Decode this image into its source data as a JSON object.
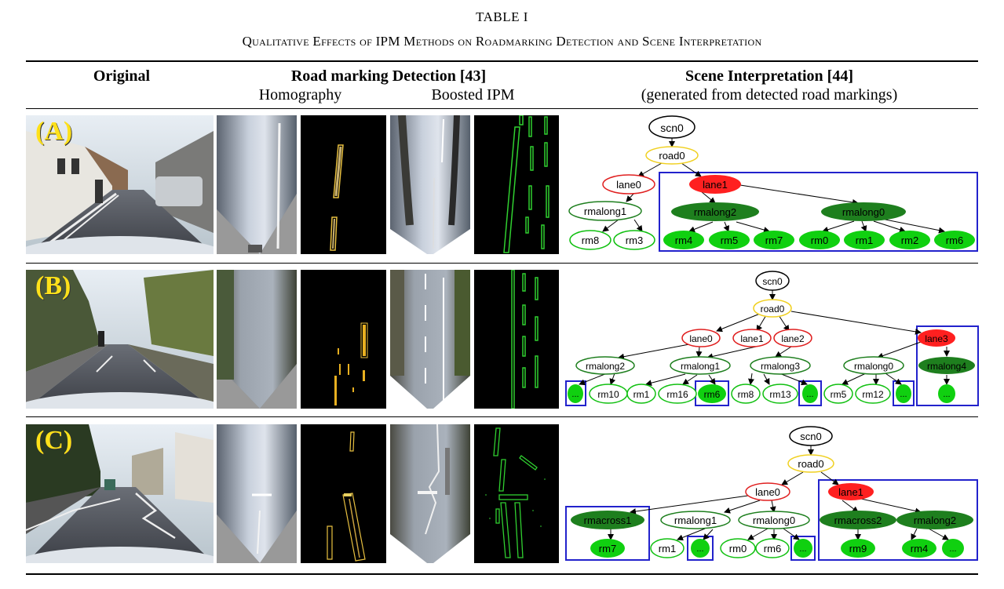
{
  "caption": {
    "label": "TABLE I",
    "title": "Qualitative Effects of IPM Methods on Roadmarking Detection and Scene Interpretation"
  },
  "headers": {
    "original": "Original",
    "detection": "Road marking Detection [43]",
    "homography": "Homography",
    "boosted": "Boosted IPM",
    "scene": "Scene Interpretation [44]",
    "scene_sub": "(generated from detected road markings)"
  },
  "colors": {
    "green_fill": "#1e7f1e",
    "bright_green": "#10d010",
    "red_fill": "#ff2020",
    "blue_box": "#2222cc",
    "road_outline": "#f0d020",
    "lane_outline": "#e02020"
  },
  "rows": [
    {
      "label": "(A)",
      "nodes": {
        "scn": "scn0",
        "road": "road0",
        "lane0": "lane0",
        "lane1": "lane1",
        "rmalong1": "rmalong1",
        "rmalong2": "rmalong2",
        "rmalong0": "rmalong0",
        "rm8": "rm8",
        "rm3": "rm3",
        "rm4": "rm4",
        "rm5": "rm5",
        "rm7": "rm7",
        "rm0": "rm0",
        "rm1": "rm1",
        "rm2": "rm2",
        "rm6": "rm6"
      }
    },
    {
      "label": "(B)",
      "nodes": {
        "scn": "scn0",
        "road": "road0",
        "lane0": "lane0",
        "lane1": "lane1",
        "lane2": "lane2",
        "lane3": "lane3",
        "rmalong2": "rmalong2",
        "rmalong1": "rmalong1",
        "rmalong3": "rmalong3",
        "rmalong0": "rmalong0",
        "rmalong4": "rmalong4",
        "dots": "...",
        "rm10": "rm10",
        "rm1": "rm1",
        "rm16": "rm16",
        "rm6": "rm6",
        "rm8": "rm8",
        "rm13": "rm13",
        "rm5": "rm5",
        "rm12": "rm12"
      }
    },
    {
      "label": "(C)",
      "nodes": {
        "scn": "scn0",
        "road": "road0",
        "lane0": "lane0",
        "lane1": "lane1",
        "rmacross1": "rmacross1",
        "rmalong1": "rmalong1",
        "rmalong0": "rmalong0",
        "rmacross2": "rmacross2",
        "rmalong2": "rmalong2",
        "rm7": "rm7",
        "rm1": "rm1",
        "dots": "...",
        "rm0": "rm0",
        "rm6": "rm6",
        "rm9": "rm9",
        "rm4": "rm4"
      }
    }
  ]
}
